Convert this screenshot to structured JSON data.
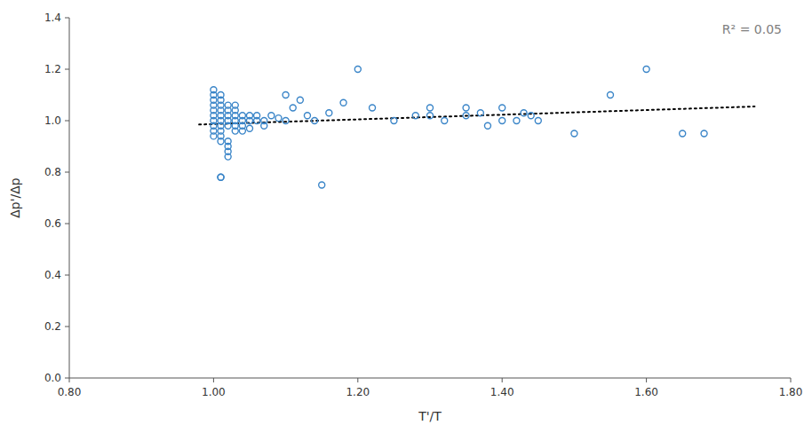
{
  "chart_data": {
    "type": "scatter",
    "xlabel": "T'/T",
    "ylabel": "Δp'/Δp",
    "annotations": [
      {
        "text": "R² = 0.05",
        "color": "#808080"
      }
    ],
    "series": [
      {
        "type": "scatter",
        "marker": "open-circle",
        "color": "#3a85c8",
        "x": [
          1.0,
          1.0,
          1.0,
          1.0,
          1.0,
          1.0,
          1.0,
          1.0,
          1.0,
          1.0,
          1.01,
          1.01,
          1.01,
          1.01,
          1.01,
          1.01,
          1.01,
          1.01,
          1.01,
          1.01,
          1.01,
          1.01,
          1.02,
          1.02,
          1.02,
          1.02,
          1.02,
          1.02,
          1.02,
          1.02,
          1.02,
          1.03,
          1.03,
          1.03,
          1.03,
          1.03,
          1.03,
          1.04,
          1.04,
          1.04,
          1.04,
          1.05,
          1.05,
          1.05,
          1.06,
          1.06,
          1.07,
          1.07,
          1.08,
          1.09,
          1.1,
          1.1,
          1.11,
          1.12,
          1.13,
          1.14,
          1.15,
          1.16,
          1.18,
          1.2,
          1.22,
          1.25,
          1.28,
          1.3,
          1.3,
          1.32,
          1.35,
          1.35,
          1.37,
          1.38,
          1.4,
          1.4,
          1.42,
          1.43,
          1.44,
          1.45,
          1.5,
          1.55,
          1.6,
          1.65,
          1.68
        ],
        "values": [
          1.0,
          1.02,
          1.04,
          1.06,
          1.08,
          0.98,
          1.1,
          1.12,
          0.96,
          0.94,
          1.0,
          1.02,
          1.04,
          1.06,
          1.08,
          0.98,
          1.1,
          0.96,
          0.94,
          0.92,
          0.78,
          0.78,
          1.0,
          1.02,
          1.04,
          0.98,
          1.06,
          0.9,
          0.88,
          0.92,
          0.86,
          1.0,
          1.02,
          1.04,
          0.98,
          0.96,
          1.06,
          1.0,
          1.02,
          0.98,
          0.96,
          1.0,
          1.02,
          0.97,
          1.0,
          1.02,
          1.0,
          0.98,
          1.02,
          1.01,
          1.1,
          1.0,
          1.05,
          1.08,
          1.02,
          1.0,
          0.75,
          1.03,
          1.07,
          1.2,
          1.05,
          1.0,
          1.02,
          1.02,
          1.05,
          1.0,
          1.02,
          1.05,
          1.03,
          0.98,
          1.0,
          1.05,
          1.0,
          1.03,
          1.02,
          1.0,
          0.95,
          1.1,
          1.2,
          0.95,
          0.95
        ]
      },
      {
        "type": "line",
        "line_style": "dotted",
        "color": "black",
        "x": [
          0.98,
          1.75
        ],
        "values": [
          0.985,
          1.055
        ]
      }
    ],
    "xlim": [
      0.8,
      1.8
    ],
    "ylim": [
      0.0,
      1.4
    ],
    "xticks": [
      {
        "value": 0.8,
        "label": "0.80"
      },
      {
        "value": 1.0,
        "label": "1.00"
      },
      {
        "value": 1.2,
        "label": "1.20"
      },
      {
        "value": 1.4,
        "label": "1.40"
      },
      {
        "value": 1.6,
        "label": "1.60"
      },
      {
        "value": 1.8,
        "label": "1.80"
      }
    ],
    "yticks": [
      {
        "value": 0.0,
        "label": "0.0"
      },
      0.2,
      0.4,
      0.6,
      0.8,
      {
        "value": 1.0,
        "label": "1.0"
      },
      1.2,
      1.4
    ],
    "grid": false
  }
}
